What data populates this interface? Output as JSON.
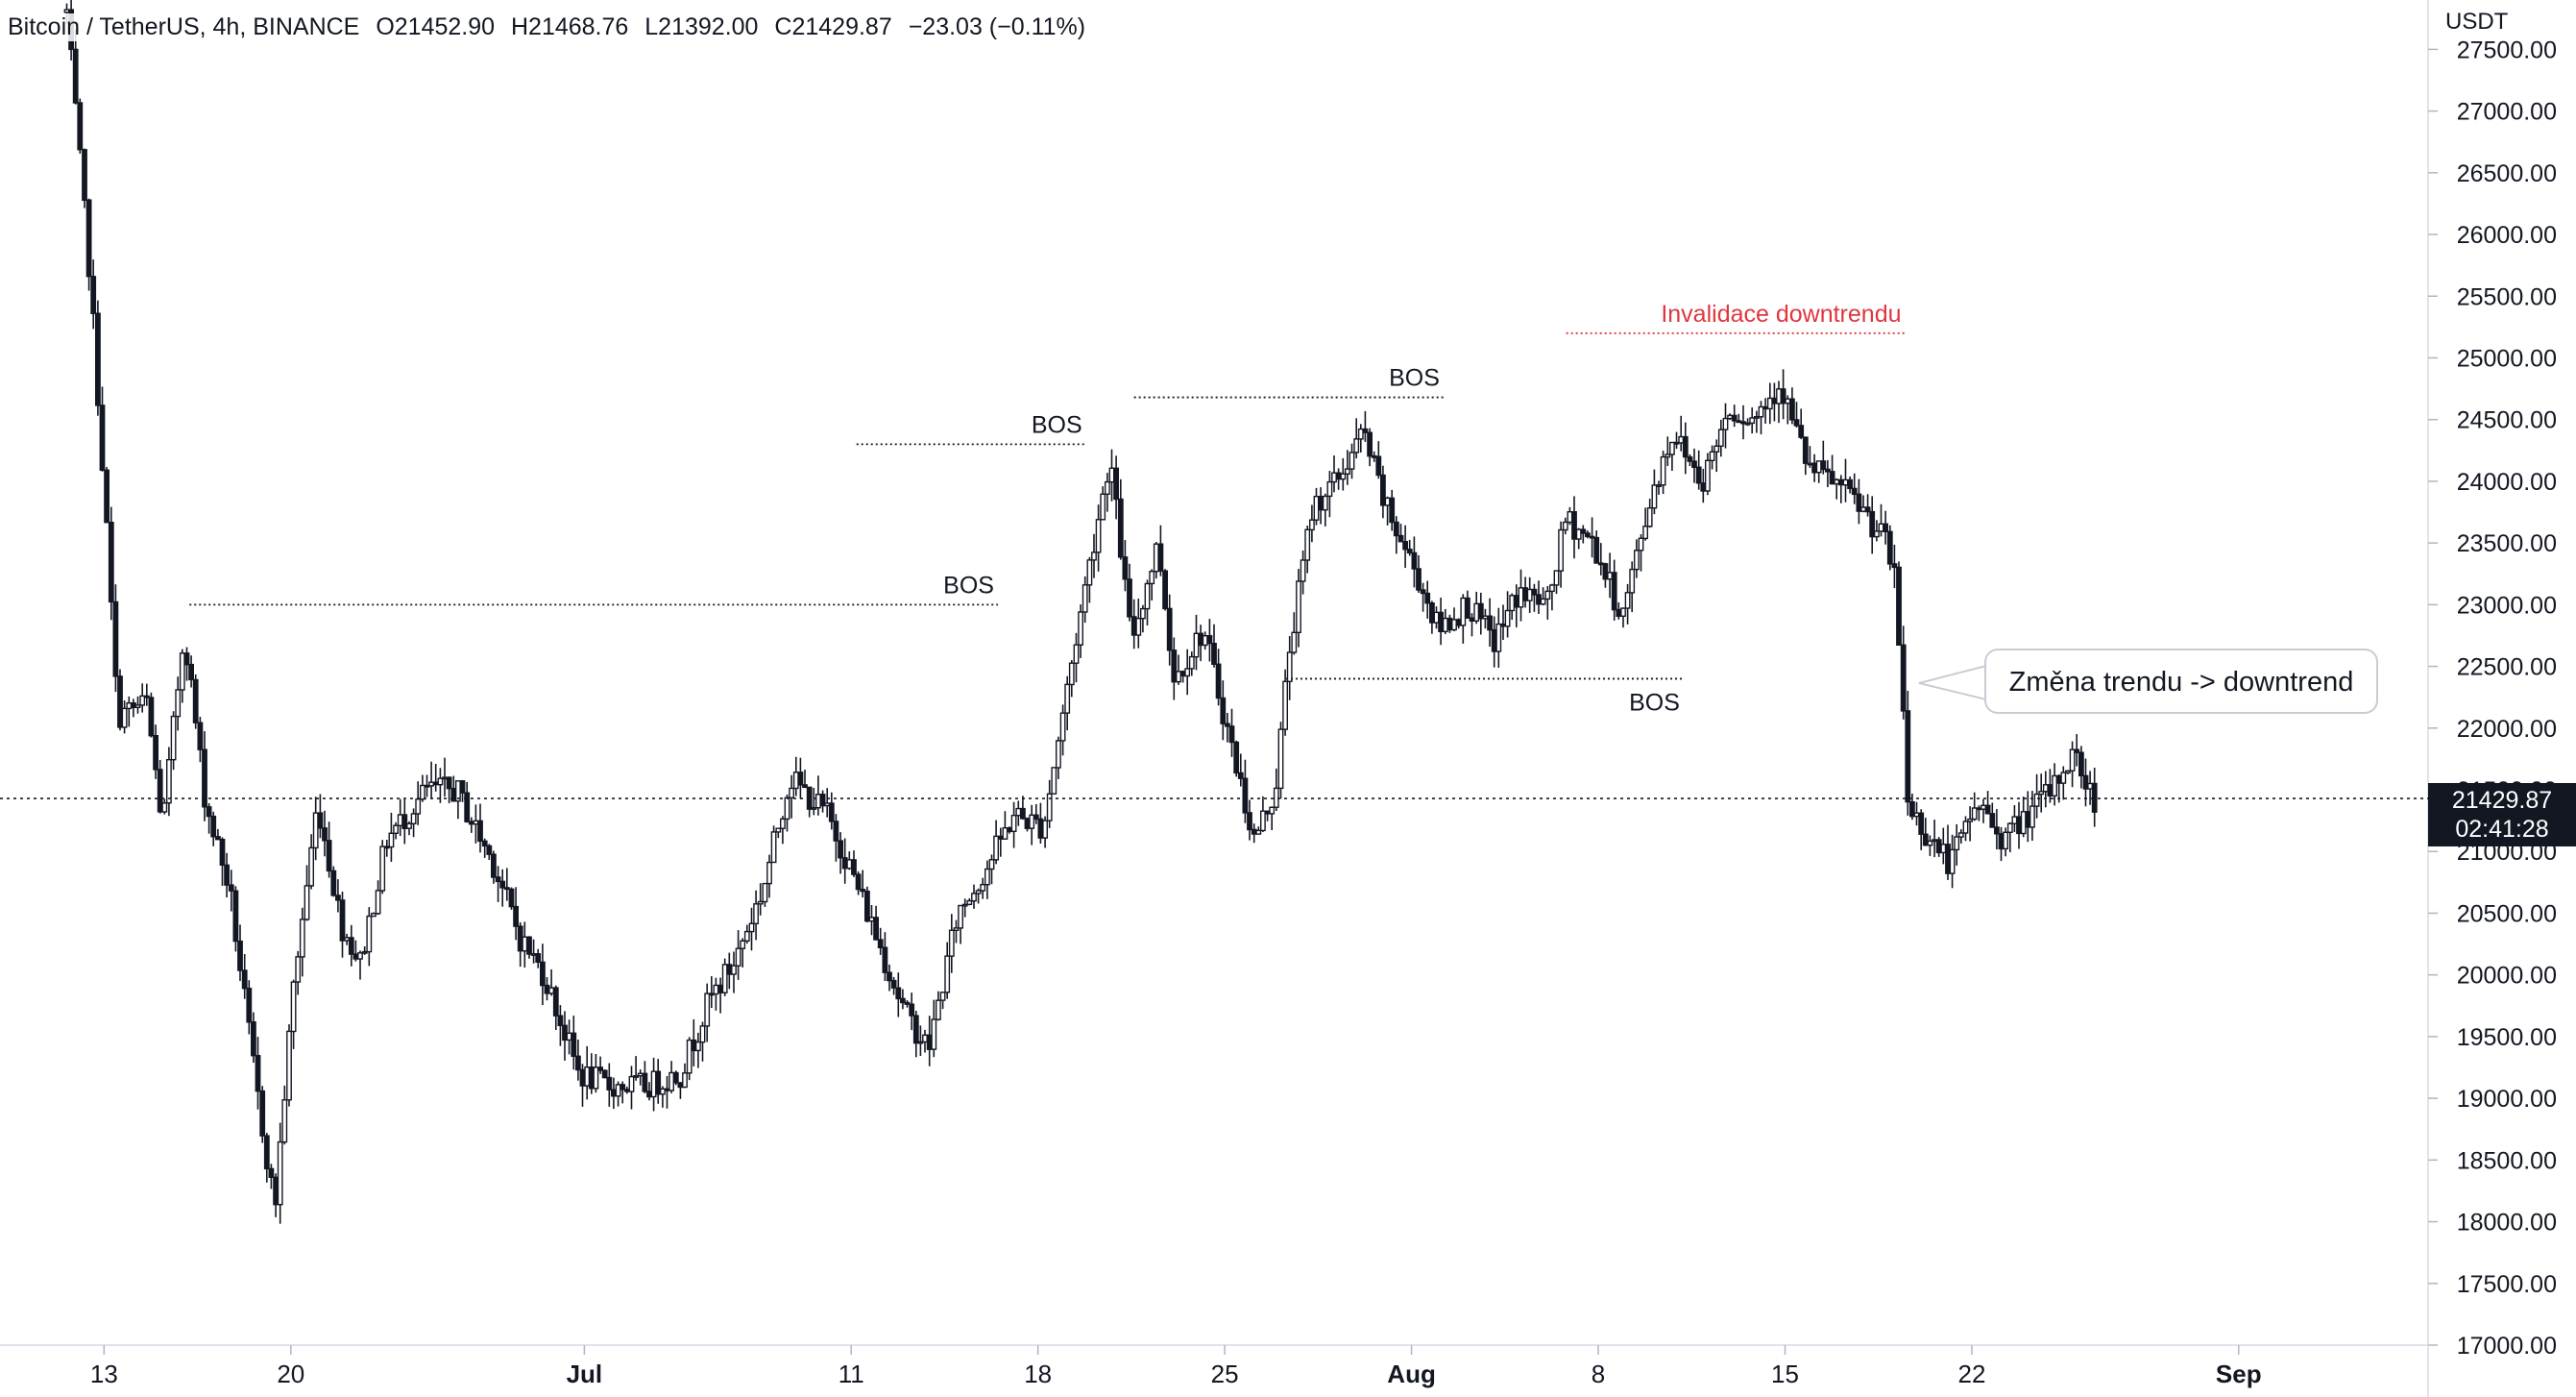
{
  "header": {
    "symbol": "Bitcoin / TetherUS, 4h, BINANCE",
    "open": "O21452.90",
    "high": "H21468.76",
    "low": "L21392.00",
    "close": "C21429.87",
    "change": "−23.03 (−0.11%)"
  },
  "axis": {
    "currency": "USDT",
    "y_ticks": [
      "27500.00",
      "27000.00",
      "26500.00",
      "26000.00",
      "25500.00",
      "25000.00",
      "24500.00",
      "24000.00",
      "23500.00",
      "23000.00",
      "22500.00",
      "22000.00",
      "21500.00",
      "21000.00",
      "20500.00",
      "20000.00",
      "19500.00",
      "19000.00",
      "18500.00",
      "18000.00",
      "17500.00",
      "17000.00"
    ],
    "y_tick_values": [
      27500,
      27000,
      26500,
      26000,
      25500,
      25000,
      24500,
      24000,
      23500,
      23000,
      22500,
      22000,
      21500,
      21000,
      20500,
      20000,
      19500,
      19000,
      18500,
      18000,
      17500,
      17000
    ],
    "x_ticks": [
      {
        "label": "13",
        "day": 13,
        "bold": false
      },
      {
        "label": "20",
        "day": 20,
        "bold": false
      },
      {
        "label": "Jul",
        "day": 31,
        "bold": true
      },
      {
        "label": "11",
        "day": 41,
        "bold": false
      },
      {
        "label": "18",
        "day": 48,
        "bold": false
      },
      {
        "label": "25",
        "day": 55,
        "bold": false
      },
      {
        "label": "Aug",
        "day": 62,
        "bold": true
      },
      {
        "label": "8",
        "day": 69,
        "bold": false
      },
      {
        "label": "15",
        "day": 76,
        "bold": false
      },
      {
        "label": "22",
        "day": 83,
        "bold": false
      },
      {
        "label": "Sep",
        "day": 93,
        "bold": true
      }
    ]
  },
  "price_tag": {
    "price": "21429.87",
    "countdown": "02:41:28"
  },
  "annotations": {
    "bos": [
      {
        "label": "BOS",
        "price": 23000,
        "from_day": 16.2,
        "to_day": 46.5,
        "label_side": "above"
      },
      {
        "label": "BOS",
        "price": 24300,
        "from_day": 41.2,
        "to_day": 49.8,
        "label_side": "above"
      },
      {
        "label": "BOS",
        "price": 24680,
        "from_day": 51.6,
        "to_day": 63.2,
        "label_side": "above"
      },
      {
        "label": "BOS",
        "price": 22400,
        "from_day": 57.3,
        "to_day": 72.2,
        "label_side": "below"
      }
    ],
    "invalidation": {
      "label": "Invalidace downtrendu",
      "price": 25200,
      "from_day": 67.8,
      "to_day": 80.5,
      "color": "#e0363f"
    },
    "callout": "Změna trendu -> downtrend"
  },
  "colors": {
    "candle": "#131722",
    "background": "#ffffff",
    "invalidation": "#e0363f",
    "price_line": "#131722"
  },
  "chart_data": {
    "type": "candlestick",
    "title": "Bitcoin / TetherUS, 4h, BINANCE",
    "ylabel": "USDT",
    "x_unit": "calendar day, Jun 1 = day 1 (Jul = 31, Aug = 62, Sep = 93)",
    "ylim": [
      17000,
      27900
    ],
    "xlim": [
      9.1,
      100.1
    ],
    "last_price": 21429.87,
    "anchors": [
      {
        "day": 11.6,
        "price": 27800
      },
      {
        "day": 12.5,
        "price": 25600
      },
      {
        "day": 13.1,
        "price": 23600
      },
      {
        "day": 13.5,
        "price": 22100
      },
      {
        "day": 14.6,
        "price": 22200
      },
      {
        "day": 15.2,
        "price": 21200
      },
      {
        "day": 16.0,
        "price": 22800
      },
      {
        "day": 16.8,
        "price": 21400
      },
      {
        "day": 17.7,
        "price": 20700
      },
      {
        "day": 18.7,
        "price": 19100
      },
      {
        "day": 19.4,
        "price": 18100
      },
      {
        "day": 20.1,
        "price": 19900
      },
      {
        "day": 21.0,
        "price": 21400
      },
      {
        "day": 21.9,
        "price": 20400
      },
      {
        "day": 22.6,
        "price": 20100
      },
      {
        "day": 23.6,
        "price": 21100
      },
      {
        "day": 25.1,
        "price": 21500
      },
      {
        "day": 26.2,
        "price": 21500
      },
      {
        "day": 27.6,
        "price": 20900
      },
      {
        "day": 28.6,
        "price": 20300
      },
      {
        "day": 29.5,
        "price": 20000
      },
      {
        "day": 30.8,
        "price": 19200
      },
      {
        "day": 31.9,
        "price": 19100
      },
      {
        "day": 33.4,
        "price": 19100
      },
      {
        "day": 34.6,
        "price": 19200
      },
      {
        "day": 35.7,
        "price": 19800
      },
      {
        "day": 36.6,
        "price": 20100
      },
      {
        "day": 37.7,
        "price": 20700
      },
      {
        "day": 38.7,
        "price": 21600
      },
      {
        "day": 40.1,
        "price": 21300
      },
      {
        "day": 40.9,
        "price": 20900
      },
      {
        "day": 41.8,
        "price": 20400
      },
      {
        "day": 43.0,
        "price": 19700
      },
      {
        "day": 43.9,
        "price": 19400
      },
      {
        "day": 45.0,
        "price": 20500
      },
      {
        "day": 45.9,
        "price": 20800
      },
      {
        "day": 47.1,
        "price": 21300
      },
      {
        "day": 48.2,
        "price": 21200
      },
      {
        "day": 49.0,
        "price": 22200
      },
      {
        "day": 49.9,
        "price": 23300
      },
      {
        "day": 50.7,
        "price": 24200
      },
      {
        "day": 51.5,
        "price": 22700
      },
      {
        "day": 52.5,
        "price": 23500
      },
      {
        "day": 53.1,
        "price": 22400
      },
      {
        "day": 54.2,
        "price": 22800
      },
      {
        "day": 55.2,
        "price": 21900
      },
      {
        "day": 56.1,
        "price": 21100
      },
      {
        "day": 56.9,
        "price": 21500
      },
      {
        "day": 57.4,
        "price": 22600
      },
      {
        "day": 58.3,
        "price": 23800
      },
      {
        "day": 59.2,
        "price": 24000
      },
      {
        "day": 60.2,
        "price": 24400
      },
      {
        "day": 61.0,
        "price": 23800
      },
      {
        "day": 62.1,
        "price": 23300
      },
      {
        "day": 63.0,
        "price": 22800
      },
      {
        "day": 64.1,
        "price": 23000
      },
      {
        "day": 65.1,
        "price": 22700
      },
      {
        "day": 66.0,
        "price": 23100
      },
      {
        "day": 67.1,
        "price": 23000
      },
      {
        "day": 67.8,
        "price": 23700
      },
      {
        "day": 68.8,
        "price": 23500
      },
      {
        "day": 69.9,
        "price": 22900
      },
      {
        "day": 71.0,
        "price": 23900
      },
      {
        "day": 71.8,
        "price": 24400
      },
      {
        "day": 72.9,
        "price": 24000
      },
      {
        "day": 73.9,
        "price": 24600
      },
      {
        "day": 74.8,
        "price": 24500
      },
      {
        "day": 75.8,
        "price": 24800
      },
      {
        "day": 76.9,
        "price": 24100
      },
      {
        "day": 77.8,
        "price": 24000
      },
      {
        "day": 78.8,
        "price": 23800
      },
      {
        "day": 79.8,
        "price": 23500
      },
      {
        "day": 80.1,
        "price": 23200
      },
      {
        "day": 80.4,
        "price": 22300
      },
      {
        "day": 80.6,
        "price": 21400
      },
      {
        "day": 81.1,
        "price": 21200
      },
      {
        "day": 82.2,
        "price": 20900
      },
      {
        "day": 83.2,
        "price": 21400
      },
      {
        "day": 84.2,
        "price": 21100
      },
      {
        "day": 85.1,
        "price": 21300
      },
      {
        "day": 86.0,
        "price": 21500
      },
      {
        "day": 86.8,
        "price": 21800
      },
      {
        "day": 87.6,
        "price": 21400
      }
    ]
  }
}
